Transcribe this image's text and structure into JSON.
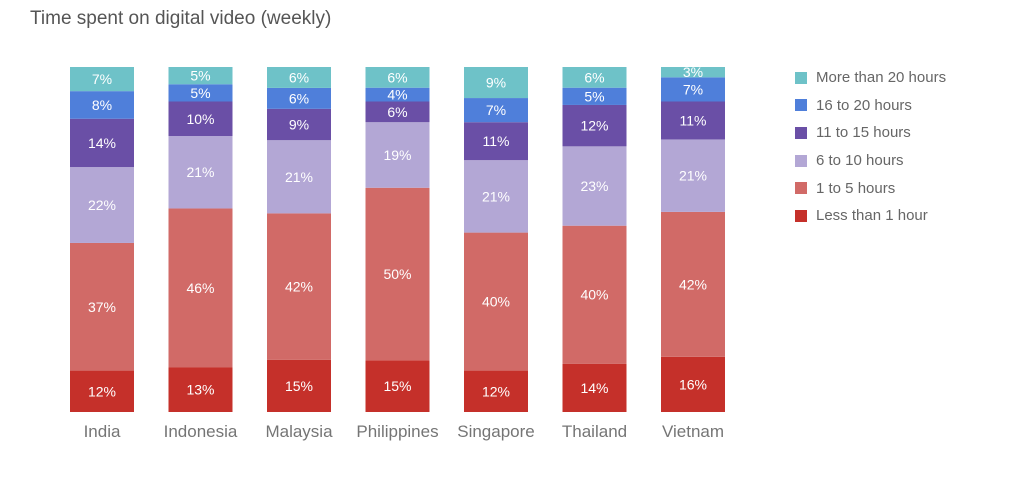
{
  "chart_data": {
    "type": "bar",
    "stacked": true,
    "normalized": true,
    "title": "Time spent on digital video (weekly)",
    "xlabel": "",
    "ylabel": "",
    "ylim": [
      0,
      100
    ],
    "grid": false,
    "legend_position": "right",
    "categories": [
      "India",
      "Indonesia",
      "Malaysia",
      "Philippines",
      "Singapore",
      "Thailand",
      "Vietnam"
    ],
    "series": [
      {
        "name": "Less than 1 hour",
        "color": "#c5302a",
        "values": [
          12,
          13,
          15,
          15,
          12,
          14,
          16
        ]
      },
      {
        "name": "1 to 5 hours",
        "color": "#d16a67",
        "values": [
          37,
          46,
          42,
          50,
          40,
          40,
          42
        ]
      },
      {
        "name": "6 to 10 hours",
        "color": "#b3a7d5",
        "values": [
          22,
          21,
          21,
          19,
          21,
          23,
          21
        ]
      },
      {
        "name": "11 to 15 hours",
        "color": "#6a4fa6",
        "values": [
          14,
          10,
          9,
          6,
          11,
          12,
          11
        ]
      },
      {
        "name": "16 to 20 hours",
        "color": "#4f7fda",
        "values": [
          8,
          5,
          6,
          4,
          7,
          5,
          7
        ]
      },
      {
        "name": "More than 20 hours",
        "color": "#6ec2c8",
        "values": [
          7,
          5,
          6,
          6,
          9,
          6,
          3
        ]
      }
    ],
    "legend_order": [
      5,
      4,
      3,
      2,
      1,
      0
    ],
    "value_suffix": "%"
  }
}
